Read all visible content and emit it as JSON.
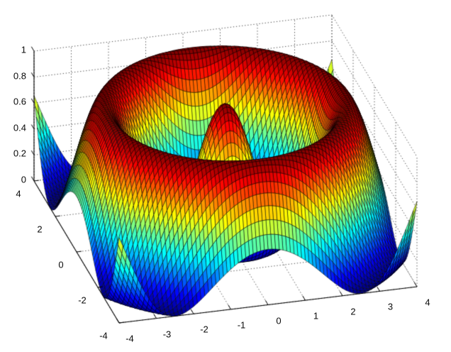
{
  "figure": {
    "background": "#ffffff",
    "title": ""
  },
  "chart_data": {
    "type": "surface",
    "title": "",
    "xlabel": "",
    "ylabel": "",
    "zlabel": "",
    "function": "z = cos(sqrt(x^2 + y^2))^2",
    "x_range": [
      -4,
      4
    ],
    "y_range": [
      -4,
      4
    ],
    "z_range": [
      0,
      1
    ],
    "mesh_step": 0.1,
    "view": {
      "azimuth": -37.5,
      "elevation": 30,
      "projection": "orthographic"
    },
    "colormap": "jet",
    "colormap_range": [
      0,
      1
    ],
    "shading": "flat",
    "edge_color": "#000000",
    "surface_low_color": "#00008f",
    "surface_high_color": "#800000",
    "grid": true,
    "grid_line_style": "dotted",
    "grid_color": "#4a4a4a",
    "axis_color": "#000000",
    "axes": {
      "x": {
        "ticks": [
          -4,
          -3,
          -2,
          -1,
          0,
          1,
          2,
          3,
          4
        ],
        "tick_labels": [
          "-4",
          "-3",
          "-2",
          "-1",
          "0",
          "1",
          "2",
          "3",
          "4"
        ]
      },
      "y": {
        "ticks": [
          -4,
          -2,
          0,
          2,
          4
        ],
        "tick_labels": [
          "-4",
          "-2",
          "0",
          "2",
          "4"
        ]
      },
      "z": {
        "ticks": [
          0,
          0.2,
          0.4,
          0.6,
          0.8,
          1
        ],
        "tick_labels": [
          "0",
          "0.2",
          "0.4",
          "0.6",
          "0.8",
          "1"
        ]
      }
    },
    "z_values_at_integer_grid": {
      "x": [
        -4,
        -3,
        -2,
        -1,
        0,
        1,
        2,
        3,
        4
      ],
      "y": [
        -4,
        -3,
        -2,
        -1,
        0,
        1,
        2,
        3,
        4
      ],
      "z": [
        [
          0.665,
          0.081,
          0.054,
          0.305,
          0.427,
          0.305,
          0.054,
          0.081,
          0.665
        ],
        [
          0.081,
          0.199,
          0.797,
          1.0,
          0.98,
          1.0,
          0.797,
          0.199,
          0.081
        ],
        [
          0.054,
          0.797,
          0.905,
          0.378,
          0.173,
          0.378,
          0.905,
          0.797,
          0.054
        ],
        [
          0.305,
          1.0,
          0.378,
          0.024,
          0.292,
          0.024,
          0.378,
          1.0,
          0.305
        ],
        [
          0.427,
          0.98,
          0.173,
          0.292,
          1.0,
          0.292,
          0.173,
          0.98,
          0.427
        ],
        [
          0.305,
          1.0,
          0.378,
          0.024,
          0.292,
          0.024,
          0.378,
          1.0,
          0.305
        ],
        [
          0.054,
          0.797,
          0.905,
          0.378,
          0.173,
          0.378,
          0.905,
          0.797,
          0.054
        ],
        [
          0.081,
          0.199,
          0.797,
          1.0,
          0.98,
          1.0,
          0.797,
          0.199,
          0.081
        ],
        [
          0.665,
          0.081,
          0.054,
          0.305,
          0.427,
          0.305,
          0.054,
          0.081,
          0.665
        ]
      ]
    }
  }
}
